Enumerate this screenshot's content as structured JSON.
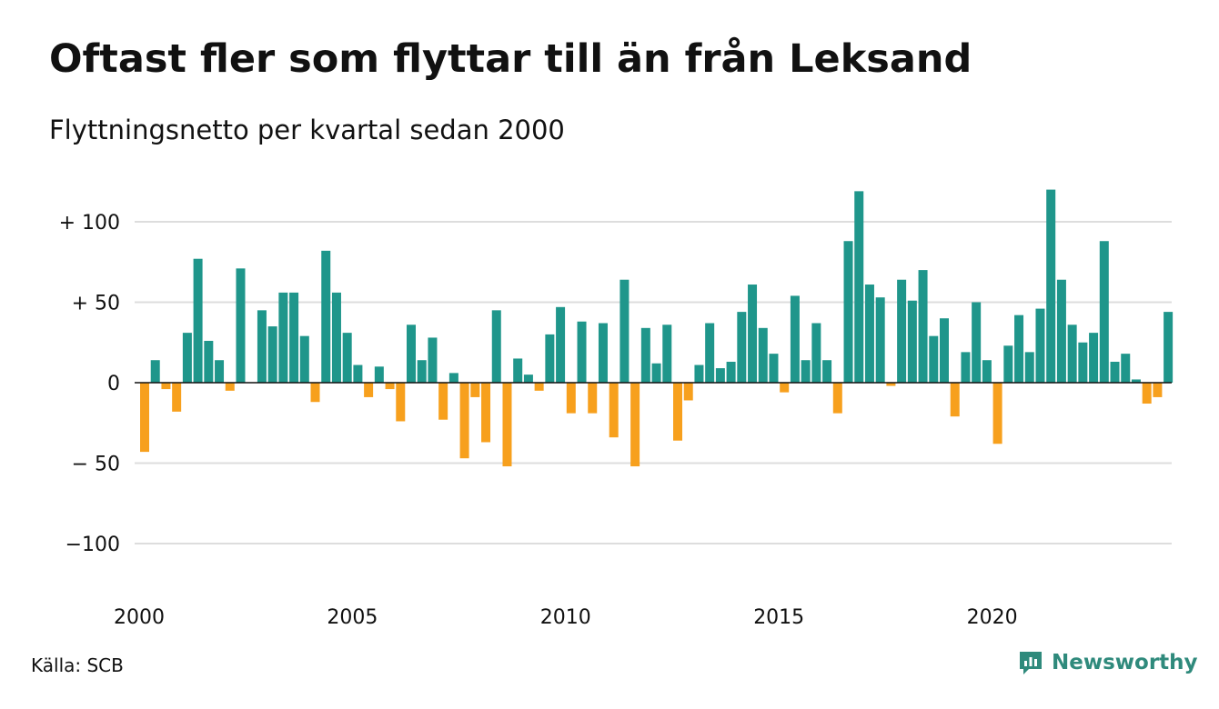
{
  "title": "Oftast fler som flyttar till än från Leksand",
  "subtitle": "Flyttningsnetto per kvartal sedan 2000",
  "source": "Källa: SCB",
  "brand": {
    "name": "Newsworthy",
    "icon": "newsworthy-logo-icon"
  },
  "colors": {
    "positive": "#1f968b",
    "negative": "#f7a01d",
    "grid": "#dddddd",
    "zero": "#111111",
    "brand": "#2f8a7c"
  },
  "chart_data": {
    "type": "bar",
    "title": "Oftast fler som flyttar till än från Leksand",
    "subtitle": "Flyttningsnetto per kvartal sedan 2000",
    "xlabel": "",
    "ylabel": "",
    "ylim": [
      -125,
      125
    ],
    "xlim": [
      2000,
      2024.75
    ],
    "grid": true,
    "yticks": [
      {
        "value": 100,
        "label": "+ 100"
      },
      {
        "value": 50,
        "label": "+  50"
      },
      {
        "value": 0,
        "label": "0"
      },
      {
        "value": -50,
        "label": "− 50"
      },
      {
        "value": -100,
        "label": "−100"
      }
    ],
    "xticks": [
      {
        "value": 2000,
        "label": "2000"
      },
      {
        "value": 2005,
        "label": "2005"
      },
      {
        "value": 2010,
        "label": "2010"
      },
      {
        "value": 2015,
        "label": "2015"
      },
      {
        "value": 2020,
        "label": "2020"
      }
    ],
    "series": [
      {
        "start": "2000 Q1",
        "frequency": "quarterly",
        "values": [
          -43,
          14,
          -4,
          -18,
          31,
          77,
          26,
          14,
          -5,
          71,
          0,
          45,
          35,
          56,
          56,
          29,
          -12,
          82,
          56,
          31,
          11,
          -9,
          10,
          -4,
          -24,
          36,
          14,
          28,
          -23,
          6,
          -47,
          -9,
          -37,
          45,
          -52,
          15,
          5,
          -5,
          30,
          47,
          -19,
          38,
          -19,
          37,
          -34,
          64,
          -52,
          34,
          12,
          36,
          -36,
          -11,
          11,
          37,
          9,
          13,
          44,
          61,
          34,
          18,
          -6,
          54,
          14,
          37,
          14,
          -19,
          88,
          119,
          61,
          53,
          -2,
          64,
          51,
          70,
          29,
          40,
          -21,
          19,
          50,
          14,
          -38,
          23,
          42,
          19,
          46,
          120,
          64,
          36,
          25,
          31,
          88,
          13,
          18,
          2,
          -13,
          -9,
          44
        ]
      }
    ]
  }
}
